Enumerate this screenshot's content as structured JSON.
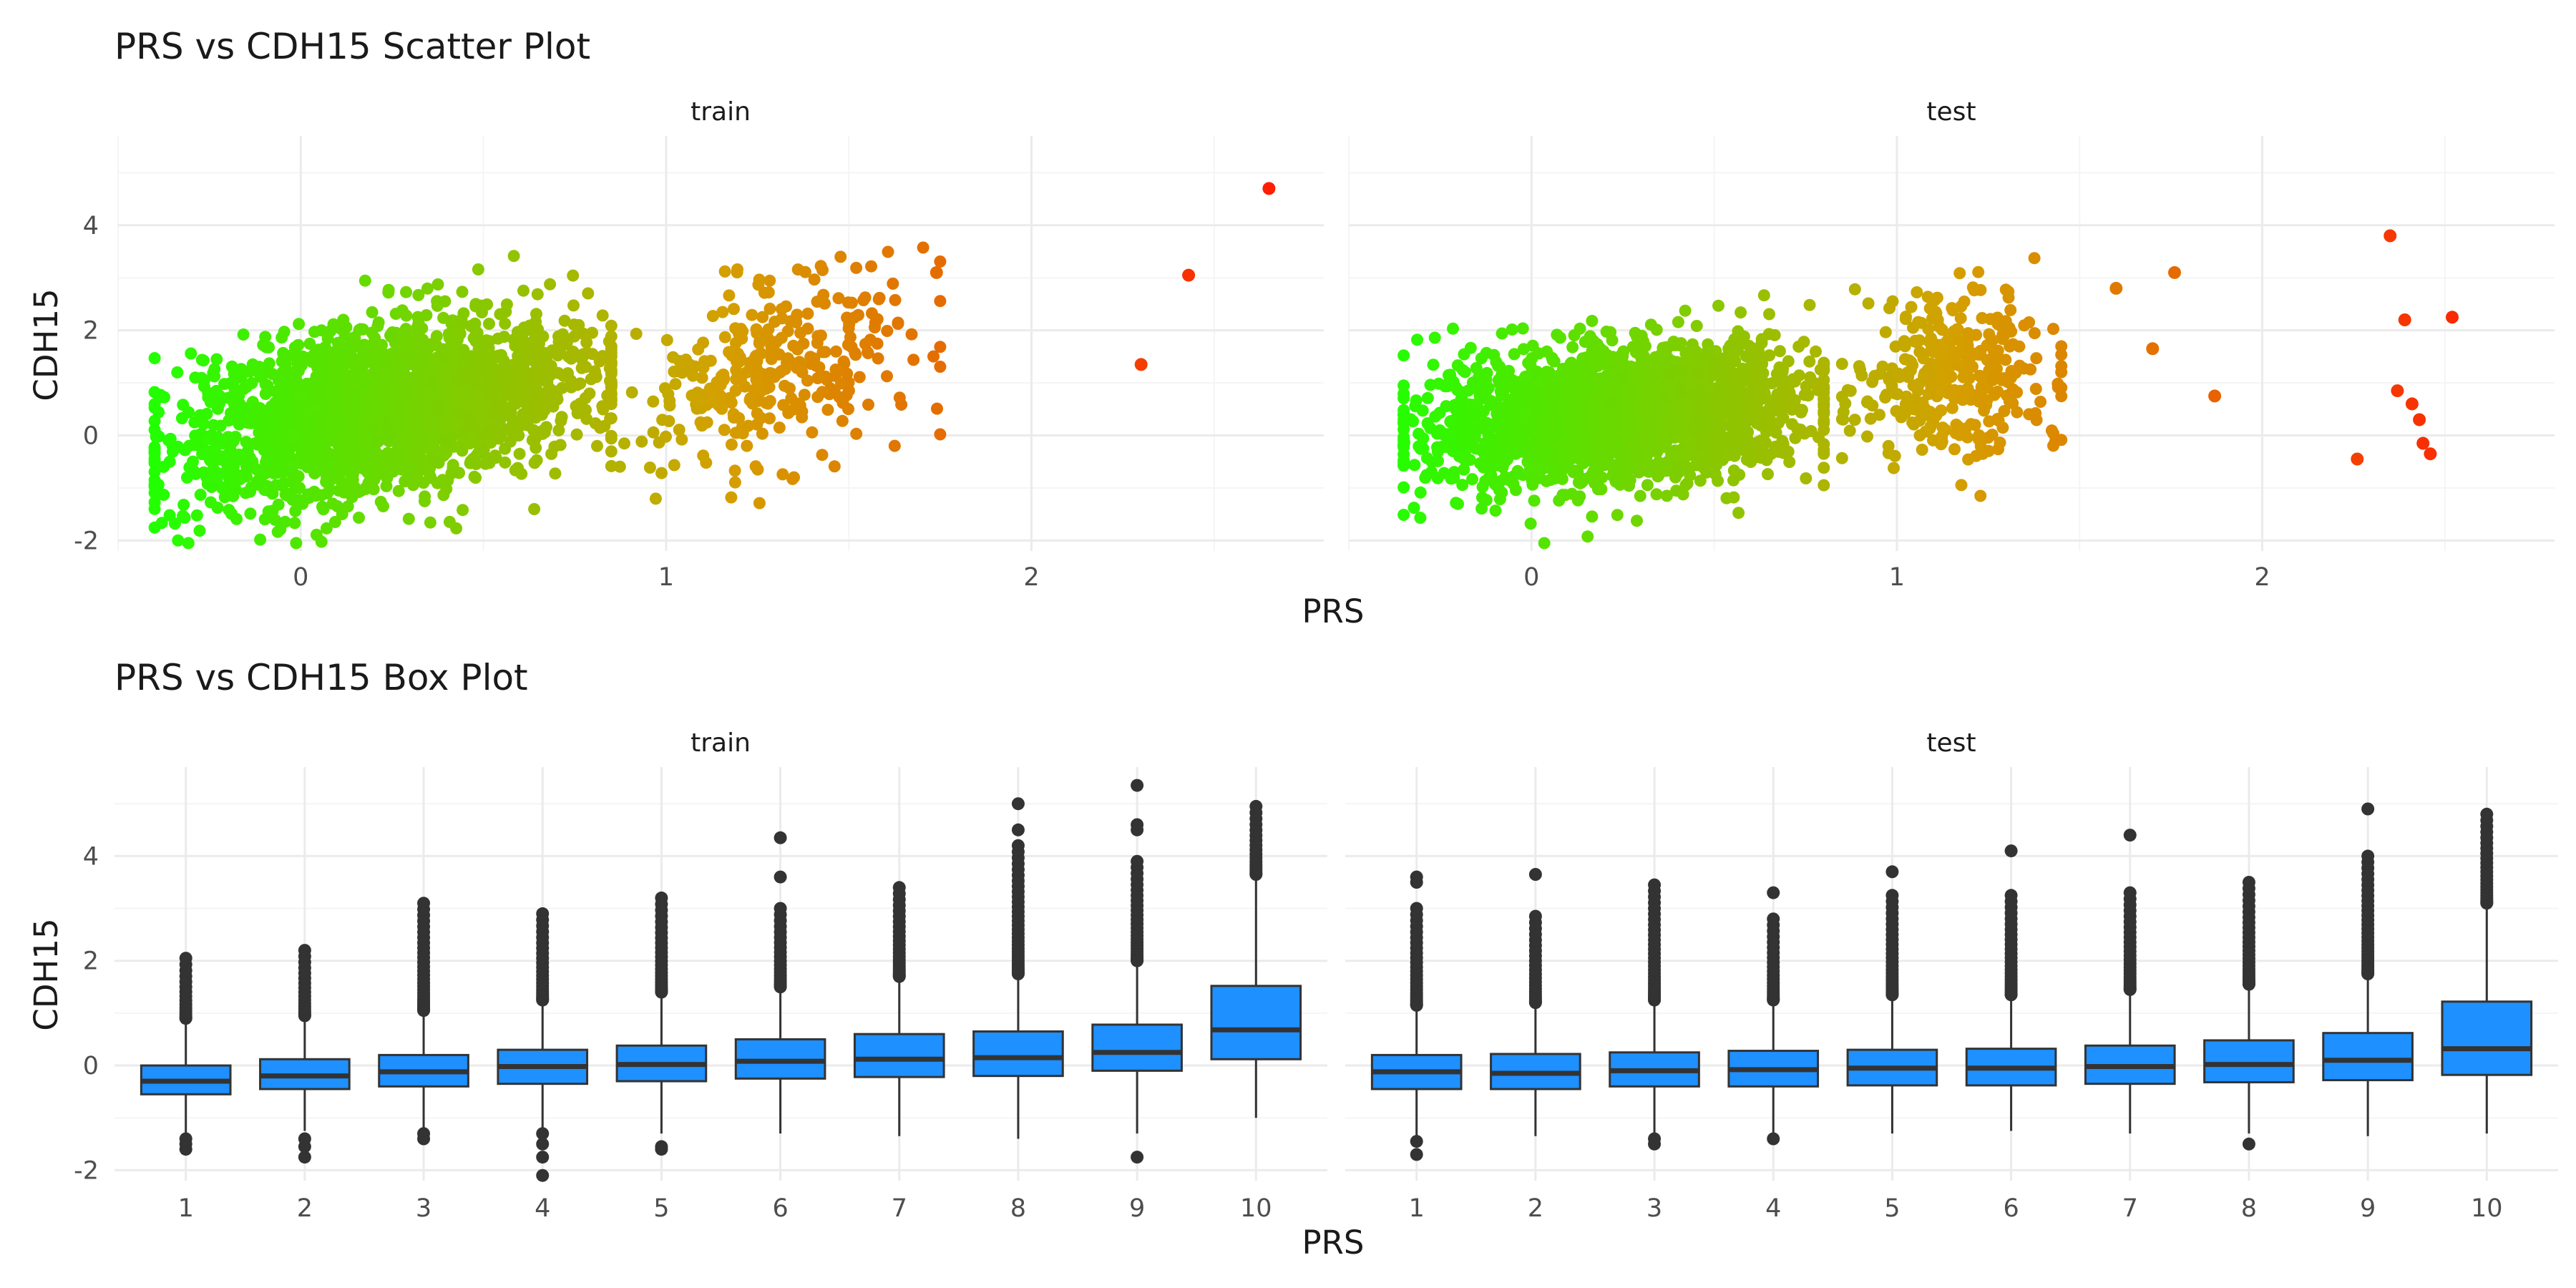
{
  "chart_data": [
    {
      "type": "scatter",
      "title": "PRS vs CDH15 Scatter Plot",
      "xlabel": "PRS",
      "ylabel": "CDH15",
      "xlim": [
        -0.5,
        2.8
      ],
      "ylim": [
        -2.2,
        5.7
      ],
      "x_ticks": [
        0,
        1,
        2
      ],
      "y_ticks": [
        -2,
        0,
        2,
        4
      ],
      "grid": true,
      "color_scale": {
        "low": "#22ff00",
        "mid": "#d4a000",
        "high": "#ff1a00",
        "domain": [
          -0.4,
          2.7
        ]
      },
      "panels": [
        {
          "name": "train",
          "clusters": [
            {
              "x_range": [
                -0.4,
                0.85
              ],
              "y_mean": 0.5,
              "y_sd": 1.0,
              "n": 2200,
              "slope": 1.2
            },
            {
              "x_range": [
                0.85,
                1.75
              ],
              "y_mean": 1.3,
              "y_sd": 1.2,
              "n": 320,
              "slope": 2.0
            }
          ],
          "outliers": [
            [
              1.74,
              3.1
            ],
            [
              2.3,
              1.35
            ],
            [
              2.43,
              3.05
            ],
            [
              2.65,
              4.7
            ]
          ]
        },
        {
          "name": "test",
          "clusters": [
            {
              "x_range": [
                -0.35,
                0.8
              ],
              "y_mean": 0.35,
              "y_sd": 0.9,
              "n": 2000,
              "slope": 0.6
            },
            {
              "x_range": [
                0.85,
                1.45
              ],
              "y_mean": 1.2,
              "y_sd": 1.1,
              "n": 340,
              "slope": 0.5
            }
          ],
          "outliers": [
            [
              1.6,
              2.8
            ],
            [
              1.7,
              1.65
            ],
            [
              1.76,
              3.1
            ],
            [
              1.87,
              0.75
            ],
            [
              2.26,
              -0.45
            ],
            [
              2.35,
              3.8
            ],
            [
              2.37,
              0.85
            ],
            [
              2.39,
              2.2
            ],
            [
              2.41,
              0.6
            ],
            [
              2.43,
              0.3
            ],
            [
              2.44,
              -0.15
            ],
            [
              2.46,
              -0.35
            ],
            [
              2.52,
              2.25
            ]
          ]
        }
      ]
    },
    {
      "type": "box",
      "title": "PRS vs CDH15 Box Plot",
      "xlabel": "PRS",
      "ylabel": "CDH15",
      "categories": [
        "1",
        "2",
        "3",
        "4",
        "5",
        "6",
        "7",
        "8",
        "9",
        "10"
      ],
      "ylim": [
        -2.2,
        5.7
      ],
      "y_ticks": [
        -2,
        0,
        2,
        4
      ],
      "grid": true,
      "box_color": "#1e90ff",
      "panels": [
        {
          "name": "train",
          "boxes": [
            {
              "whisker_low": -1.3,
              "q1": -0.55,
              "median": -0.3,
              "q3": 0.0,
              "whisker_high": 0.9,
              "outlier_range": [
                0.9,
                2.05
              ],
              "outliers_low": [
                -1.4,
                -1.5,
                -1.6
              ]
            },
            {
              "whisker_low": -1.25,
              "q1": -0.45,
              "median": -0.2,
              "q3": 0.12,
              "whisker_high": 0.95,
              "outlier_range": [
                0.95,
                2.2
              ],
              "outliers_low": [
                -1.4,
                -1.55,
                -1.75
              ]
            },
            {
              "whisker_low": -1.2,
              "q1": -0.4,
              "median": -0.12,
              "q3": 0.2,
              "whisker_high": 1.05,
              "outlier_range": [
                1.05,
                3.1
              ],
              "outliers_low": [
                -1.3,
                -1.4
              ]
            },
            {
              "whisker_low": -1.2,
              "q1": -0.35,
              "median": -0.02,
              "q3": 0.3,
              "whisker_high": 1.25,
              "outlier_range": [
                1.25,
                2.9
              ],
              "outliers_low": [
                -1.3,
                -1.5,
                -1.75,
                -2.1
              ]
            },
            {
              "whisker_low": -1.3,
              "q1": -0.3,
              "median": 0.02,
              "q3": 0.38,
              "whisker_high": 1.4,
              "outlier_range": [
                1.4,
                3.2
              ],
              "outliers_low": [
                -1.55,
                -1.6
              ]
            },
            {
              "whisker_low": -1.3,
              "q1": -0.25,
              "median": 0.08,
              "q3": 0.5,
              "whisker_high": 1.5,
              "outlier_range": [
                1.5,
                3.0
              ],
              "outliers_high": [
                3.6,
                4.35
              ],
              "outliers_low": []
            },
            {
              "whisker_low": -1.35,
              "q1": -0.22,
              "median": 0.12,
              "q3": 0.6,
              "whisker_high": 1.7,
              "outlier_range": [
                1.7,
                3.4
              ],
              "outliers_low": []
            },
            {
              "whisker_low": -1.4,
              "q1": -0.2,
              "median": 0.15,
              "q3": 0.65,
              "whisker_high": 1.75,
              "outlier_range": [
                1.75,
                4.2
              ],
              "outliers_high": [
                4.5,
                5.0
              ],
              "outliers_low": []
            },
            {
              "whisker_low": -1.3,
              "q1": -0.1,
              "median": 0.25,
              "q3": 0.78,
              "whisker_high": 2.0,
              "outlier_range": [
                2.0,
                3.9
              ],
              "outliers_high": [
                4.5,
                4.6,
                5.35
              ],
              "outliers_low": [
                -1.75
              ]
            },
            {
              "whisker_low": -1.0,
              "q1": 0.12,
              "median": 0.68,
              "q3": 1.52,
              "whisker_high": 3.65,
              "outlier_range": [
                3.65,
                4.95
              ],
              "outliers_low": []
            }
          ]
        },
        {
          "name": "test",
          "boxes": [
            {
              "whisker_low": -1.35,
              "q1": -0.45,
              "median": -0.12,
              "q3": 0.2,
              "whisker_high": 1.15,
              "outlier_range": [
                1.15,
                3.0
              ],
              "outliers_high": [
                3.5,
                3.6
              ],
              "outliers_low": [
                -1.45,
                -1.7
              ]
            },
            {
              "whisker_low": -1.35,
              "q1": -0.45,
              "median": -0.15,
              "q3": 0.22,
              "whisker_high": 1.2,
              "outlier_range": [
                1.2,
                2.85
              ],
              "outliers_high": [
                3.65
              ],
              "outliers_low": []
            },
            {
              "whisker_low": -1.35,
              "q1": -0.4,
              "median": -0.1,
              "q3": 0.25,
              "whisker_high": 1.25,
              "outlier_range": [
                1.25,
                3.45
              ],
              "outliers_low": [
                -1.4,
                -1.5
              ]
            },
            {
              "whisker_low": -1.3,
              "q1": -0.4,
              "median": -0.08,
              "q3": 0.28,
              "whisker_high": 1.25,
              "outlier_range": [
                1.25,
                2.8
              ],
              "outliers_high": [
                3.3
              ],
              "outliers_low": [
                -1.4
              ]
            },
            {
              "whisker_low": -1.3,
              "q1": -0.38,
              "median": -0.05,
              "q3": 0.3,
              "whisker_high": 1.35,
              "outlier_range": [
                1.35,
                3.25
              ],
              "outliers_high": [
                3.7
              ],
              "outliers_low": []
            },
            {
              "whisker_low": -1.25,
              "q1": -0.38,
              "median": -0.05,
              "q3": 0.32,
              "whisker_high": 1.35,
              "outlier_range": [
                1.35,
                3.25
              ],
              "outliers_high": [
                4.1
              ],
              "outliers_low": []
            },
            {
              "whisker_low": -1.3,
              "q1": -0.35,
              "median": -0.02,
              "q3": 0.38,
              "whisker_high": 1.45,
              "outlier_range": [
                1.45,
                3.3
              ],
              "outliers_high": [
                4.4
              ],
              "outliers_low": []
            },
            {
              "whisker_low": -1.3,
              "q1": -0.32,
              "median": 0.02,
              "q3": 0.48,
              "whisker_high": 1.55,
              "outlier_range": [
                1.55,
                3.5
              ],
              "outliers_low": [
                -1.5
              ]
            },
            {
              "whisker_low": -1.35,
              "q1": -0.28,
              "median": 0.1,
              "q3": 0.62,
              "whisker_high": 1.75,
              "outlier_range": [
                1.75,
                4.0
              ],
              "outliers_high": [
                4.9
              ],
              "outliers_low": []
            },
            {
              "whisker_low": -1.3,
              "q1": -0.18,
              "median": 0.32,
              "q3": 1.22,
              "whisker_high": 3.1,
              "outlier_range": [
                3.1,
                4.8
              ],
              "outliers_low": []
            }
          ]
        }
      ]
    }
  ]
}
